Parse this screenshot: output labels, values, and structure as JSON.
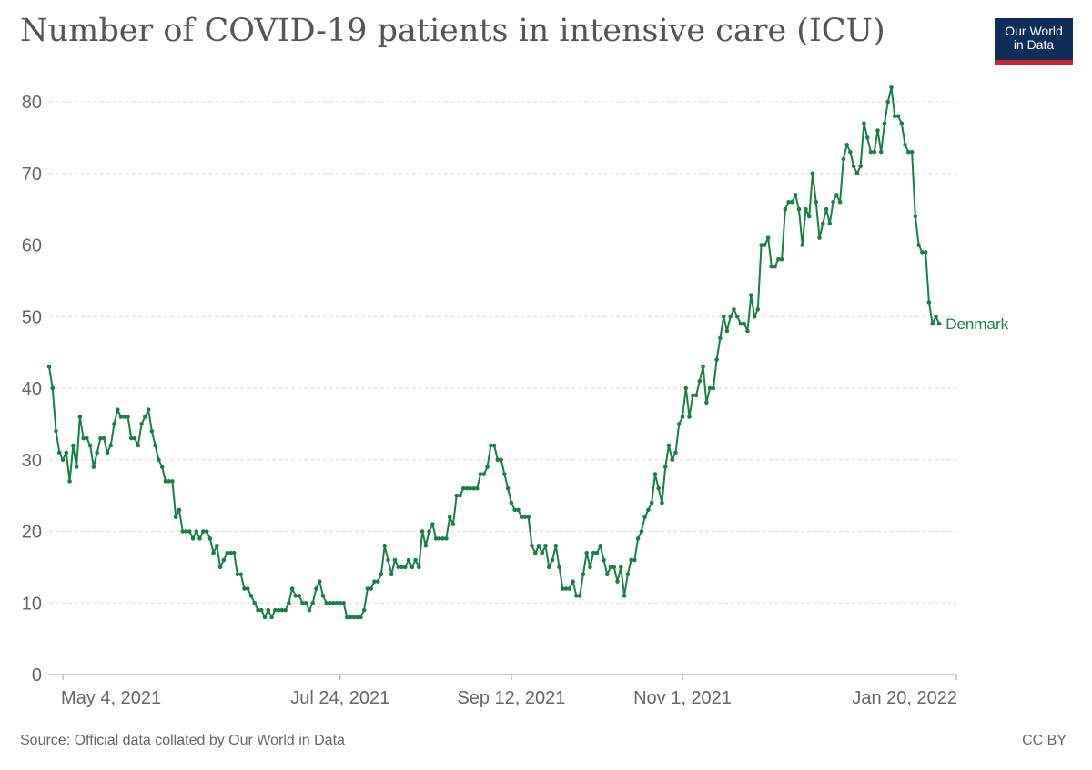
{
  "header": {
    "title": "Number of COVID-19 patients in intensive care (ICU)",
    "logo_line1": "Our World",
    "logo_line2": "in Data"
  },
  "footer": {
    "source": "Source: Official data collated by Our World in Data",
    "license": "CC BY"
  },
  "colors": {
    "series": "#1a7f43",
    "grid": "#dddddd",
    "axis": "#999999",
    "text": "#666666"
  },
  "chart_data": {
    "type": "line",
    "ylim": [
      0,
      80
    ],
    "yticks": [
      0,
      10,
      20,
      30,
      40,
      50,
      60,
      70,
      80
    ],
    "ytick_labels": [
      "0",
      "10",
      "20",
      "30",
      "40",
      "50",
      "60",
      "70",
      "80"
    ],
    "xlim": [
      "2021-04-30",
      "2022-01-20"
    ],
    "xticks": [
      {
        "date": "2021-05-04",
        "label": "May 4, 2021"
      },
      {
        "date": "2021-07-24",
        "label": "Jul 24, 2021"
      },
      {
        "date": "2021-09-12",
        "label": "Sep 12, 2021"
      },
      {
        "date": "2021-11-01",
        "label": "Nov 1, 2021"
      },
      {
        "date": "2022-01-20",
        "label": "Jan 20, 2022"
      }
    ],
    "grid": "horizontal dashed",
    "legend": "inline label at end of line",
    "series": [
      {
        "name": "Denmark",
        "start_date": "2021-04-30",
        "values": [
          43,
          40,
          34,
          31,
          30,
          31,
          27,
          32,
          29,
          36,
          33,
          33,
          32,
          29,
          31,
          33,
          33,
          31,
          32,
          35,
          37,
          36,
          36,
          36,
          33,
          33,
          32,
          35,
          36,
          37,
          34,
          32,
          30,
          29,
          27,
          27,
          27,
          22,
          23,
          20,
          20,
          20,
          19,
          20,
          19,
          20,
          20,
          19,
          17,
          18,
          15,
          16,
          17,
          17,
          17,
          14,
          14,
          12,
          12,
          11,
          10,
          9,
          9,
          8,
          9,
          8,
          9,
          9,
          9,
          9,
          10,
          12,
          11,
          11,
          10,
          10,
          9,
          10,
          12,
          13,
          11,
          10,
          10,
          10,
          10,
          10,
          10,
          8,
          8,
          8,
          8,
          8,
          9,
          12,
          12,
          13,
          13,
          14,
          18,
          16,
          14,
          16,
          15,
          15,
          15,
          16,
          15,
          16,
          15,
          20,
          18,
          20,
          21,
          19,
          19,
          19,
          19,
          22,
          21,
          25,
          25,
          26,
          26,
          26,
          26,
          26,
          28,
          28,
          29,
          32,
          32,
          30,
          30,
          28,
          26,
          24,
          23,
          23,
          22,
          22,
          22,
          18,
          17,
          18,
          17,
          18,
          15,
          16,
          18,
          15,
          12,
          12,
          12,
          13,
          11,
          11,
          14,
          17,
          15,
          17,
          17,
          18,
          16,
          14,
          15,
          15,
          13,
          15,
          11,
          14,
          16,
          16,
          19,
          20,
          22,
          23,
          24,
          28,
          26,
          24,
          29,
          32,
          30,
          31,
          35,
          36,
          40,
          36,
          39,
          39,
          41,
          43,
          38,
          40,
          40,
          44,
          47,
          50,
          48,
          50,
          51,
          50,
          49,
          49,
          48,
          53,
          50,
          51,
          60,
          60,
          61,
          57,
          57,
          58,
          58,
          65,
          66,
          66,
          67,
          65,
          60,
          65,
          64,
          70,
          66,
          61,
          63,
          65,
          63,
          66,
          67,
          66,
          72,
          74,
          73,
          71,
          70,
          71,
          77,
          75,
          73,
          73,
          76,
          73,
          77,
          80,
          82,
          78,
          78,
          77,
          74,
          73,
          73,
          64,
          60,
          59,
          59,
          52,
          49,
          50,
          49
        ]
      }
    ]
  }
}
